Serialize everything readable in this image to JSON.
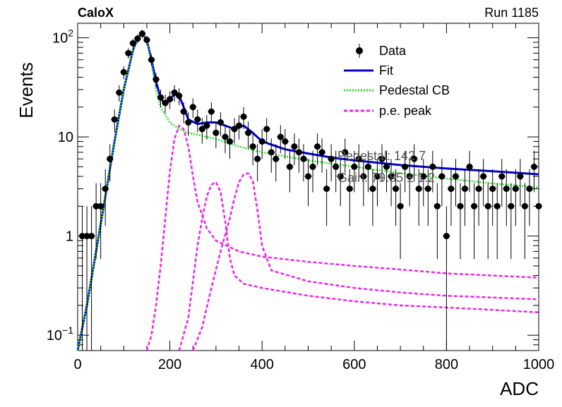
{
  "header": {
    "experiment": "CaloX",
    "run": "Run 1185"
  },
  "fit_info": {
    "pedestal": "Pedestal: 142.7",
    "gain": "Gain: 79.85 ± 1.2"
  },
  "chart_data": {
    "type": "scatter",
    "xlabel": "ADC",
    "ylabel": "Events",
    "xlim": [
      0,
      1000
    ],
    "ylim": [
      0.07,
      140
    ],
    "y_scale": "log",
    "x_ticks": [
      0,
      200,
      400,
      600,
      800,
      1000
    ],
    "y_ticks": [
      {
        "value": 0.1,
        "base": "10",
        "exp": "−1"
      },
      {
        "value": 1,
        "label": "1"
      },
      {
        "value": 10,
        "label": "10"
      },
      {
        "value": 100,
        "base": "10",
        "exp": "2"
      }
    ],
    "legend_position": "top-right",
    "legend": [
      "Data",
      "Fit",
      "Pedestal CB",
      "p.e. peak"
    ],
    "colors": {
      "data": "#000000",
      "fit": "#0000cc",
      "pedestal": "#22dd22",
      "pe": "#ee22ee"
    },
    "data_points": {
      "x": [
        10,
        20,
        30,
        40,
        50,
        60,
        70,
        80,
        90,
        100,
        110,
        120,
        130,
        140,
        150,
        160,
        170,
        180,
        190,
        200,
        210,
        220,
        230,
        240,
        250,
        260,
        270,
        280,
        290,
        300,
        310,
        320,
        330,
        340,
        350,
        360,
        370,
        380,
        390,
        400,
        410,
        420,
        430,
        440,
        450,
        460,
        470,
        480,
        490,
        500,
        510,
        520,
        530,
        540,
        550,
        560,
        570,
        580,
        590,
        600,
        610,
        620,
        630,
        640,
        650,
        660,
        670,
        680,
        690,
        700,
        710,
        720,
        730,
        740,
        750,
        760,
        770,
        780,
        790,
        800,
        810,
        820,
        830,
        840,
        850,
        860,
        870,
        880,
        890,
        900,
        910,
        920,
        930,
        940,
        950,
        960,
        970,
        980,
        990,
        1000
      ],
      "y": [
        1,
        1,
        1,
        2,
        2,
        3,
        6,
        15,
        28,
        45,
        70,
        88,
        98,
        110,
        95,
        60,
        38,
        25,
        22,
        24,
        28,
        26,
        18,
        14,
        20,
        15,
        12,
        13,
        18,
        11,
        14,
        10,
        9,
        12,
        13,
        16,
        11,
        8,
        6,
        9,
        12,
        7,
        6,
        10,
        9,
        5,
        8,
        7,
        6,
        4,
        5,
        8,
        7,
        3,
        6,
        5,
        4,
        7,
        3,
        5,
        6,
        4,
        5,
        3,
        4,
        6,
        5,
        4,
        3,
        2,
        5,
        4,
        6,
        3,
        4,
        3,
        5,
        2,
        4,
        1,
        3,
        4,
        2,
        3,
        5,
        2,
        3,
        4,
        2,
        3,
        2,
        4,
        3,
        2,
        3,
        4,
        2,
        3,
        5,
        2
      ]
    },
    "series": [
      {
        "name": "Fit",
        "x": [
          0,
          20,
          40,
          60,
          80,
          100,
          120,
          130,
          140,
          150,
          160,
          170,
          180,
          190,
          200,
          210,
          220,
          230,
          240,
          260,
          280,
          300,
          320,
          340,
          360,
          380,
          400,
          450,
          500,
          550,
          600,
          700,
          800,
          900,
          1000
        ],
        "y": [
          0.07,
          0.2,
          0.7,
          2.5,
          9,
          30,
          75,
          100,
          110,
          95,
          60,
          36,
          25,
          21,
          24,
          27,
          26,
          20,
          15,
          13.5,
          14,
          14,
          13,
          12,
          13,
          11,
          9,
          7.5,
          6.8,
          6.2,
          5.8,
          5.2,
          4.8,
          4.5,
          4.2
        ]
      },
      {
        "name": "Pedestal CB",
        "x": [
          0,
          20,
          40,
          60,
          80,
          100,
          120,
          130,
          140,
          150,
          160,
          170,
          180,
          200,
          220,
          240,
          260,
          300,
          350,
          400,
          500,
          600,
          700,
          800,
          900,
          1000
        ],
        "y": [
          0.07,
          0.2,
          0.7,
          2.5,
          9,
          30,
          75,
          100,
          110,
          95,
          55,
          30,
          20,
          14,
          12,
          11,
          10.5,
          9.5,
          8,
          7,
          5.8,
          5,
          4.3,
          3.8,
          3.4,
          3.1
        ]
      },
      {
        "name": "p.e. peak 1",
        "x": [
          150,
          160,
          170,
          180,
          190,
          200,
          210,
          220,
          230,
          240,
          250,
          260,
          280,
          300,
          350,
          400,
          500,
          600,
          700,
          800,
          900,
          1000
        ],
        "y": [
          0.07,
          0.1,
          0.2,
          0.5,
          1.5,
          4.5,
          9.5,
          13,
          12,
          8,
          4,
          2.2,
          1.2,
          0.9,
          0.7,
          0.62,
          0.55,
          0.5,
          0.46,
          0.42,
          0.4,
          0.38
        ]
      },
      {
        "name": "p.e. peak 2",
        "x": [
          220,
          240,
          260,
          270,
          280,
          290,
          300,
          310,
          320,
          330,
          340,
          360,
          400,
          500,
          600,
          700,
          800,
          900,
          1000
        ],
        "y": [
          0.07,
          0.15,
          0.8,
          1.5,
          2.5,
          3.3,
          3.5,
          2.8,
          1.4,
          0.6,
          0.4,
          0.33,
          0.3,
          0.25,
          0.22,
          0.2,
          0.19,
          0.18,
          0.17
        ]
      },
      {
        "name": "p.e. peak 3",
        "x": [
          250,
          270,
          290,
          310,
          330,
          340,
          350,
          360,
          370,
          380,
          390,
          400,
          420,
          500,
          600,
          700,
          800,
          900,
          1000
        ],
        "y": [
          0.07,
          0.12,
          0.3,
          0.7,
          1.5,
          2.4,
          3.5,
          4.2,
          4.3,
          3.6,
          1.8,
          0.8,
          0.45,
          0.35,
          0.3,
          0.27,
          0.25,
          0.24,
          0.23
        ]
      }
    ]
  }
}
